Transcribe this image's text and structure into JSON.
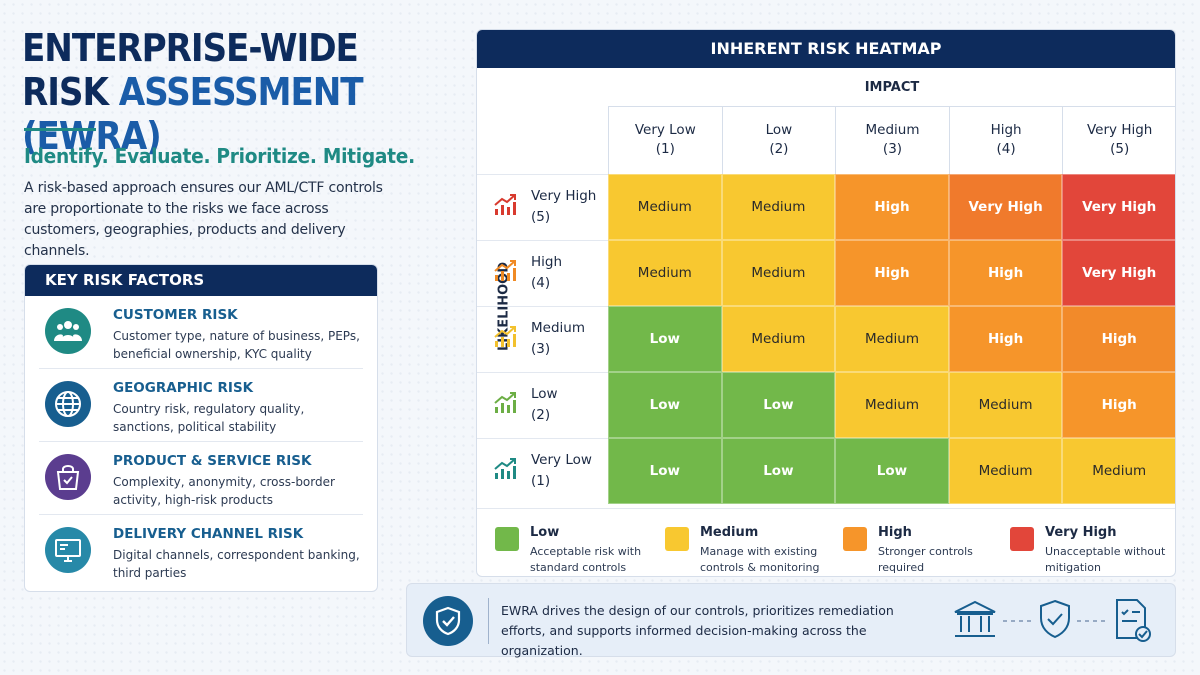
{
  "title": {
    "line1": "ENTERPRISE-WIDE",
    "line2a": "RISK ",
    "line2b": "ASSESSMENT (EWRA)"
  },
  "tagline": "Identify. Evaluate. Prioritize. Mitigate.",
  "intro": "A risk-based approach ensures our AML/CTF controls are proportionate to the risks we face across customers, geographies, products and delivery channels.",
  "factors": {
    "header": "KEY RISK FACTORS",
    "items": [
      {
        "title": "CUSTOMER RISK",
        "desc": "Customer type, nature of business, PEPs, beneficial ownership, KYC quality",
        "icon": "people-icon",
        "color": "#1f8a84"
      },
      {
        "title": "GEOGRAPHIC RISK",
        "desc": "Country risk, regulatory quality, sanctions, political stability",
        "icon": "globe-icon",
        "color": "#175e8f"
      },
      {
        "title": "PRODUCT & SERVICE RISK",
        "desc": "Complexity, anonymity, cross-border activity, high-risk products",
        "icon": "shopping-bag-icon",
        "color": "#5b3d8f"
      },
      {
        "title": "DELIVERY CHANNEL RISK",
        "desc": "Digital channels, correspondent banking, third parties",
        "icon": "monitor-icon",
        "color": "#2789a8"
      }
    ]
  },
  "heatmap": {
    "header": "INHERENT RISK HEATMAP",
    "impact_label": "IMPACT",
    "likelihood_label": "LIKELIHOOD",
    "columns": [
      {
        "name": "Very Low",
        "num": "(1)"
      },
      {
        "name": "Low",
        "num": "(2)"
      },
      {
        "name": "Medium",
        "num": "(3)"
      },
      {
        "name": "High",
        "num": "(4)"
      },
      {
        "name": "Very High",
        "num": "(5)"
      }
    ],
    "rows": [
      {
        "name": "Very High",
        "num": "(5)",
        "icon_color": "#d83a2e",
        "cells": [
          "Medium",
          "Medium",
          "High",
          "Very High",
          "Very High"
        ]
      },
      {
        "name": "High",
        "num": "(4)",
        "icon_color": "#f08a24",
        "cells": [
          "Medium",
          "Medium",
          "High",
          "High",
          "Very High"
        ]
      },
      {
        "name": "Medium",
        "num": "(3)",
        "icon_color": "#f2c12e",
        "cells": [
          "Low",
          "Medium",
          "Medium",
          "High",
          "High"
        ]
      },
      {
        "name": "Low",
        "num": "(2)",
        "icon_color": "#6cae45",
        "cells": [
          "Low",
          "Low",
          "Medium",
          "Medium",
          "High"
        ]
      },
      {
        "name": "Very Low",
        "num": "(1)",
        "icon_color": "#1f8a84",
        "cells": [
          "Low",
          "Low",
          "Low",
          "Medium",
          "Medium"
        ]
      }
    ],
    "cell_colors": [
      [
        "#f8c830",
        "#f8c830",
        "#f6952a",
        "#f07a2c",
        "#e2463a"
      ],
      [
        "#f8c830",
        "#f8c830",
        "#f6952a",
        "#f6952a",
        "#e2463a"
      ],
      [
        "#72b84a",
        "#f8c830",
        "#f8c830",
        "#f6952a",
        "#f28a2a"
      ],
      [
        "#72b84a",
        "#72b84a",
        "#f8c830",
        "#f8c830",
        "#f6952a"
      ],
      [
        "#72b84a",
        "#72b84a",
        "#72b84a",
        "#f8c830",
        "#f8c830"
      ]
    ],
    "legend": [
      {
        "title": "Low",
        "desc": "Acceptable risk with standard controls",
        "color": "#72b84a"
      },
      {
        "title": "Medium",
        "desc": "Manage with existing controls & monitoring",
        "color": "#f8c830"
      },
      {
        "title": "High",
        "desc": "Stronger controls required",
        "color": "#f6952a"
      },
      {
        "title": "Very High",
        "desc": "Unacceptable without mitigation",
        "color": "#e2463a"
      }
    ]
  },
  "footer": {
    "text": "EWRA drives the design of our controls, prioritizes remediation efforts, and supports informed decision-making across the organization.",
    "icons": [
      "bank-icon",
      "shield-check-icon",
      "checklist-icon"
    ]
  }
}
